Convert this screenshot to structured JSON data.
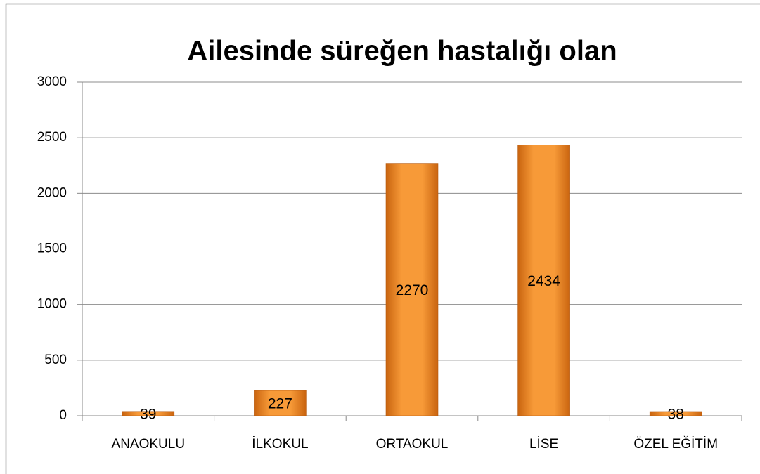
{
  "chart_data": {
    "type": "bar",
    "title": "Ailesinde süreğen hastalığı olan",
    "categories": [
      "ANAOKULU",
      "İLKOKUL",
      "ORTAOKUL",
      "LİSE",
      "ÖZEL EĞİTİM"
    ],
    "values": [
      39,
      227,
      2270,
      2434,
      38
    ],
    "color": "#f79a38",
    "ylim": [
      0,
      3000
    ],
    "yticks": [
      0,
      500,
      1000,
      1500,
      2000,
      2500,
      3000
    ],
    "grid": true,
    "data_labels": true
  }
}
